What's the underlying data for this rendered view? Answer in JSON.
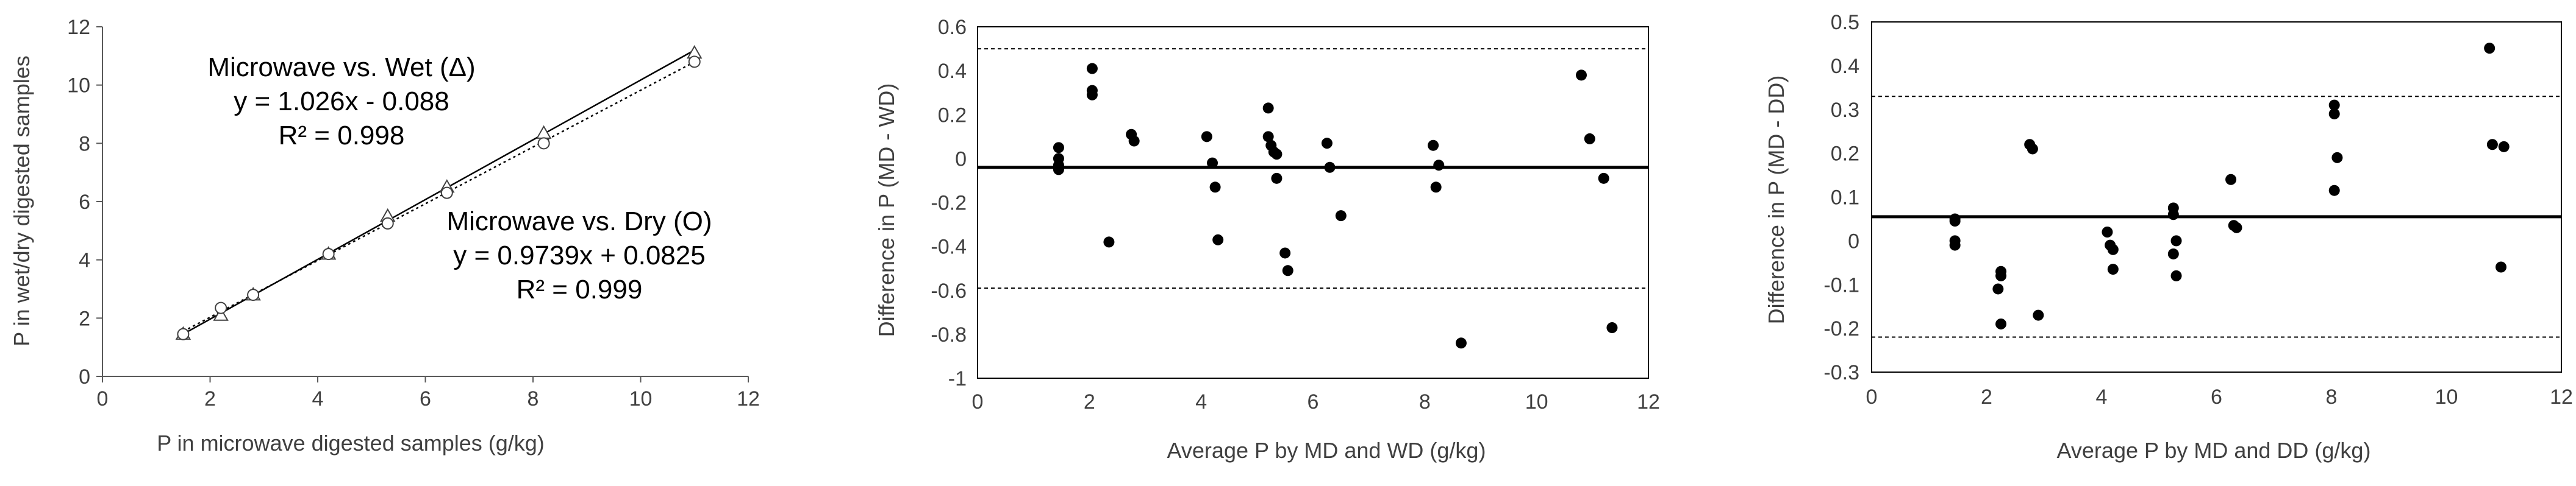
{
  "chart_data": [
    {
      "id": "c1",
      "type": "scatter",
      "xlabel": "P in microwave digested samples (g/kg)",
      "ylabel": "P in wet/dry digested samples",
      "xlim": [
        0,
        12
      ],
      "ylim": [
        0,
        12
      ],
      "xticks": [
        0,
        2,
        4,
        6,
        8,
        10,
        12
      ],
      "yticks": [
        0,
        2,
        4,
        6,
        8,
        10,
        12
      ],
      "series": [
        {
          "name": "Microwave vs. Wet (Δ)",
          "marker": "triangle",
          "points": [
            [
              1.5,
              1.45
            ],
            [
              2.2,
              2.1
            ],
            [
              2.8,
              2.8
            ],
            [
              4.2,
              4.2
            ],
            [
              5.3,
              5.5
            ],
            [
              6.4,
              6.5
            ],
            [
              8.2,
              8.35
            ],
            [
              11.0,
              11.1
            ]
          ]
        },
        {
          "name": "Microwave vs. Dry (O)",
          "marker": "circle",
          "points": [
            [
              1.5,
              1.45
            ],
            [
              2.2,
              2.35
            ],
            [
              2.8,
              2.8
            ],
            [
              4.2,
              4.2
            ],
            [
              5.3,
              5.25
            ],
            [
              6.4,
              6.3
            ],
            [
              8.2,
              8.0
            ],
            [
              11.0,
              10.8
            ]
          ]
        }
      ],
      "trendlines": [
        {
          "name": "wet",
          "slope": 1.026,
          "intercept": -0.088,
          "style": "solid",
          "x_range": [
            1.5,
            11.0
          ]
        },
        {
          "name": "dry",
          "slope": 0.9739,
          "intercept": 0.0825,
          "style": "dotted",
          "x_range": [
            1.5,
            11.0
          ]
        }
      ],
      "annotations": {
        "wet_title": "Microwave vs. Wet (Δ)",
        "wet_eq": "y = 1.026x - 0.088",
        "wet_r2": "R² = 0.998",
        "dry_title": "Microwave vs. Dry (O)",
        "dry_eq": "y = 0.9739x + 0.0825",
        "dry_r2": "R² = 0.999"
      }
    },
    {
      "id": "c2",
      "type": "scatter",
      "xlabel": "Average P by MD and WD (g/kg)",
      "ylabel": "Difference in P  (MD - WD)",
      "xlim": [
        0,
        12
      ],
      "ylim": [
        -1,
        0.6
      ],
      "xticks": [
        0,
        2,
        4,
        6,
        8,
        10,
        12
      ],
      "yticks": [
        -1,
        -0.8,
        -0.6,
        -0.4,
        -0.2,
        0,
        0.2,
        0.4,
        0.6
      ],
      "mean_line": -0.04,
      "limits": [
        0.5,
        -0.59
      ],
      "points": [
        [
          1.45,
          0.05
        ],
        [
          1.45,
          0.0
        ],
        [
          1.45,
          -0.03
        ],
        [
          1.45,
          -0.05
        ],
        [
          2.05,
          0.41
        ],
        [
          2.05,
          0.31
        ],
        [
          2.05,
          0.29
        ],
        [
          2.35,
          -0.38
        ],
        [
          2.75,
          0.11
        ],
        [
          2.8,
          0.08
        ],
        [
          4.1,
          0.1
        ],
        [
          4.2,
          -0.02
        ],
        [
          4.25,
          -0.13
        ],
        [
          4.3,
          -0.37
        ],
        [
          5.2,
          0.23
        ],
        [
          5.2,
          0.1
        ],
        [
          5.25,
          0.06
        ],
        [
          5.3,
          0.03
        ],
        [
          5.35,
          0.02
        ],
        [
          5.35,
          -0.09
        ],
        [
          5.5,
          -0.43
        ],
        [
          5.55,
          -0.51
        ],
        [
          6.25,
          0.07
        ],
        [
          6.3,
          -0.04
        ],
        [
          6.5,
          -0.26
        ],
        [
          8.15,
          0.06
        ],
        [
          8.2,
          -0.13
        ],
        [
          8.25,
          -0.03
        ],
        [
          8.65,
          -0.84
        ],
        [
          10.8,
          0.38
        ],
        [
          10.95,
          0.09
        ],
        [
          11.2,
          -0.09
        ],
        [
          11.35,
          -0.77
        ]
      ]
    },
    {
      "id": "c3",
      "type": "scatter",
      "xlabel": "Average P by MD and DD (g/kg)",
      "ylabel": "Difference in P (MD - DD)",
      "xlim": [
        0,
        12
      ],
      "ylim": [
        -0.3,
        0.5
      ],
      "xticks": [
        0,
        2,
        4,
        6,
        8,
        10,
        12
      ],
      "yticks": [
        -0.3,
        -0.2,
        -0.1,
        0,
        0.1,
        0.2,
        0.3,
        0.4,
        0.5
      ],
      "mean_line": 0.055,
      "limits": [
        0.33,
        -0.22
      ],
      "points": [
        [
          1.45,
          0.05
        ],
        [
          1.45,
          0.045
        ],
        [
          1.45,
          0.0
        ],
        [
          1.45,
          -0.01
        ],
        [
          2.25,
          -0.07
        ],
        [
          2.25,
          -0.08
        ],
        [
          2.2,
          -0.11
        ],
        [
          2.25,
          -0.19
        ],
        [
          2.75,
          0.22
        ],
        [
          2.8,
          0.21
        ],
        [
          2.9,
          -0.17
        ],
        [
          4.1,
          0.02
        ],
        [
          4.15,
          -0.01
        ],
        [
          4.2,
          -0.02
        ],
        [
          4.2,
          -0.065
        ],
        [
          5.25,
          0.075
        ],
        [
          5.25,
          0.06
        ],
        [
          5.3,
          0.0
        ],
        [
          5.25,
          -0.03
        ],
        [
          5.3,
          -0.08
        ],
        [
          6.25,
          0.14
        ],
        [
          6.3,
          0.035
        ],
        [
          6.35,
          0.03
        ],
        [
          8.05,
          0.31
        ],
        [
          8.05,
          0.29
        ],
        [
          8.1,
          0.19
        ],
        [
          8.05,
          0.115
        ],
        [
          10.75,
          0.44
        ],
        [
          10.8,
          0.22
        ],
        [
          11.0,
          0.215
        ],
        [
          10.95,
          -0.06
        ]
      ]
    }
  ]
}
